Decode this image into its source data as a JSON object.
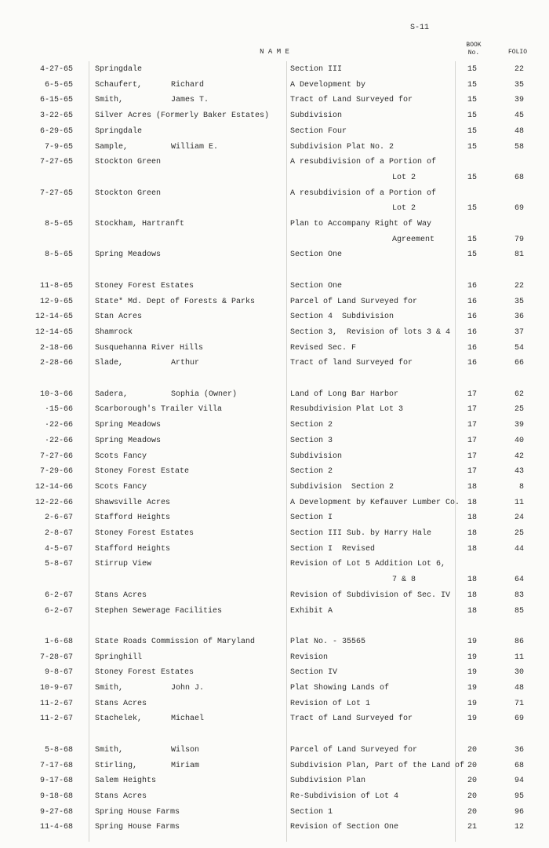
{
  "header": {
    "page": "S-11",
    "name": "N A M E",
    "book": [
      "BOOK",
      "No."
    ],
    "folio": "FOLIO"
  },
  "groups": [
    [
      {
        "date": "4-27-65",
        "name": "Springdale",
        "description": [
          "Section III"
        ],
        "book": "15",
        "folio": "22"
      },
      {
        "date": "6-5-65",
        "name": "Schaufert,",
        "given": "Richard",
        "description": [
          "A Development by"
        ],
        "book": "15",
        "folio": "35"
      },
      {
        "date": "6-15-65",
        "name": "Smith,",
        "given": "James T.",
        "description": [
          "Tract of Land Surveyed for"
        ],
        "book": "15",
        "folio": "39"
      },
      {
        "date": "3-22-65",
        "name": "Silver Acres (Formerly Baker Estates)",
        "description": [
          "Subdivision"
        ],
        "book": "15",
        "folio": "45"
      },
      {
        "date": "6-29-65",
        "name": "Springdale",
        "description": [
          "Section Four"
        ],
        "book": "15",
        "folio": "48"
      },
      {
        "date": "7-9-65",
        "name": "Sample,",
        "given": "William E.",
        "description": [
          "Subdivision Plat No. 2"
        ],
        "book": "15",
        "folio": "58"
      },
      {
        "date": "7-27-65",
        "name": "Stockton Green",
        "description": [
          "A resubdivision of a Portion of",
          "Lot 2"
        ],
        "book": "15",
        "folio": "68"
      },
      {
        "date": "7-27-65",
        "name": "Stockton Green",
        "description": [
          "A resubdivision of a Portion of",
          "Lot 2"
        ],
        "book": "15",
        "folio": "69"
      },
      {
        "date": "8-5-65",
        "name": "Stockham, Hartranft",
        "description": [
          "Plan to Accompany Right of Way",
          "Agreement"
        ],
        "book": "15",
        "folio": "79"
      },
      {
        "date": "8-5-65",
        "name": "Spring Meadows",
        "description": [
          "Section One"
        ],
        "book": "15",
        "folio": "81"
      }
    ],
    [
      {
        "date": "11-8-65",
        "name": "Stoney Forest Estates",
        "description": [
          "Section One"
        ],
        "book": "16",
        "folio": "22"
      },
      {
        "date": "12-9-65",
        "name": "State* Md. Dept of Forests & Parks",
        "description": [
          "Parcel of Land Surveyed for"
        ],
        "book": "16",
        "folio": "35"
      },
      {
        "date": "12-14-65",
        "name": "Stan Acres",
        "description": [
          "Section 4  Subdivision"
        ],
        "book": "16",
        "folio": "36"
      },
      {
        "date": "12-14-65",
        "name": "Shamrock",
        "description": [
          "Section 3,  Revision of lots 3 & 4"
        ],
        "book": "16",
        "folio": "37"
      },
      {
        "date": "2-18-66",
        "name": "Susquehanna River Hills",
        "description": [
          "Revised Sec. F"
        ],
        "book": "16",
        "folio": "54"
      },
      {
        "date": "2-28-66",
        "name": "Slade,",
        "given": "Arthur",
        "description": [
          "Tract of land Surveyed for"
        ],
        "book": "16",
        "folio": "66"
      }
    ],
    [
      {
        "date": "10-3-66",
        "name": "Sadera,",
        "given": "Sophia (Owner)",
        "description": [
          "Land of Long Bar Harbor"
        ],
        "book": "17",
        "folio": "62"
      },
      {
        "date": "·15-66",
        "name": "Scarborough's Trailer Villa",
        "description": [
          "Resubdivision Plat Lot 3"
        ],
        "book": "17",
        "folio": "25"
      },
      {
        "date": "·22-66",
        "name": "Spring Meadows",
        "description": [
          "Section 2"
        ],
        "book": "17",
        "folio": "39"
      },
      {
        "date": "·22-66",
        "name": "Spring Meadows",
        "description": [
          "Section 3"
        ],
        "book": "17",
        "folio": "40"
      },
      {
        "date": "7-27-66",
        "name": "Scots Fancy",
        "description": [
          "Subdivision"
        ],
        "book": "17",
        "folio": "42"
      },
      {
        "date": "7-29-66",
        "name": "Stoney Forest Estate",
        "description": [
          "Section 2"
        ],
        "book": "17",
        "folio": "43"
      },
      {
        "date": "12-14-66",
        "name": "Scots Fancy",
        "description": [
          "Subdivision  Section 2"
        ],
        "book": "18",
        "folio": "8"
      },
      {
        "date": "12-22-66",
        "name": "Shawsville Acres",
        "description": [
          "A Development by Kefauver Lumber Co."
        ],
        "book": "18",
        "folio": "11"
      },
      {
        "date": "2-6-67",
        "name": "Stafford Heights",
        "description": [
          "Section I"
        ],
        "book": "18",
        "folio": "24"
      },
      {
        "date": "2-8-67",
        "name": "Stoney Forest Estates",
        "description": [
          "Section III Sub. by Harry Hale"
        ],
        "book": "18",
        "folio": "25"
      },
      {
        "date": "4-5-67",
        "name": "Stafford Heights",
        "description": [
          "Section I  Revised"
        ],
        "book": "18",
        "folio": "44"
      },
      {
        "date": "5-8-67",
        "name": "Stirrup View",
        "description": [
          "Revision of Lot 5 Addition Lot 6,",
          "7 & 8"
        ],
        "book": "18",
        "folio": "64"
      },
      {
        "date": "6-2-67",
        "name": "Stans Acres",
        "description": [
          "Revision of Subdivision of Sec. IV"
        ],
        "book": "18",
        "folio": "83"
      },
      {
        "date": "6-2-67",
        "name": "Stephen Sewerage Facilities",
        "description": [
          "Exhibit A"
        ],
        "book": "18",
        "folio": "85"
      }
    ],
    [
      {
        "date": "1-6-68",
        "name": "State Roads Commission of Maryland",
        "description": [
          "Plat No. - 35565"
        ],
        "book": "19",
        "folio": "86"
      },
      {
        "date": "7-28-67",
        "name": "Springhill",
        "description": [
          "Revision"
        ],
        "book": "19",
        "folio": "11"
      },
      {
        "date": "9-8-67",
        "name": "Stoney Forest Estates",
        "description": [
          "Section IV"
        ],
        "book": "19",
        "folio": "30"
      },
      {
        "date": "10-9-67",
        "name": "Smith,",
        "given": "John J.",
        "description": [
          "Plat Showing Lands of"
        ],
        "book": "19",
        "folio": "48"
      },
      {
        "date": "11-2-67",
        "name": "Stans Acres",
        "description": [
          "Revision of Lot 1"
        ],
        "book": "19",
        "folio": "71"
      },
      {
        "date": "11-2-67",
        "name": "Stachelek,",
        "given": "Michael",
        "description": [
          "Tract of Land Surveyed for"
        ],
        "book": "19",
        "folio": "69"
      }
    ],
    [
      {
        "date": "5-8-68",
        "name": "Smith,",
        "given": "Wilson",
        "description": [
          "Parcel of Land Surveyed for"
        ],
        "book": "20",
        "folio": "36"
      },
      {
        "date": "7-17-68",
        "name": "Stirling,",
        "given": "Miriam",
        "description": [
          "Subdivision Plan, Part of the Land of"
        ],
        "book": "20",
        "folio": "68"
      },
      {
        "date": "9-17-68",
        "name": "Salem Heights",
        "description": [
          "Subdivision Plan"
        ],
        "book": "20",
        "folio": "94"
      },
      {
        "date": "9-18-68",
        "name": "Stans Acres",
        "description": [
          "Re-Subdivision of Lot 4"
        ],
        "book": "20",
        "folio": "95"
      },
      {
        "date": "9-27-68",
        "name": "Spring House Farms",
        "description": [
          "Section 1"
        ],
        "book": "20",
        "folio": "96"
      },
      {
        "date": "11-4-68",
        "name": "Spring House Farms",
        "description": [
          "Revision of Section One"
        ],
        "book": "21",
        "folio": "12"
      }
    ]
  ]
}
